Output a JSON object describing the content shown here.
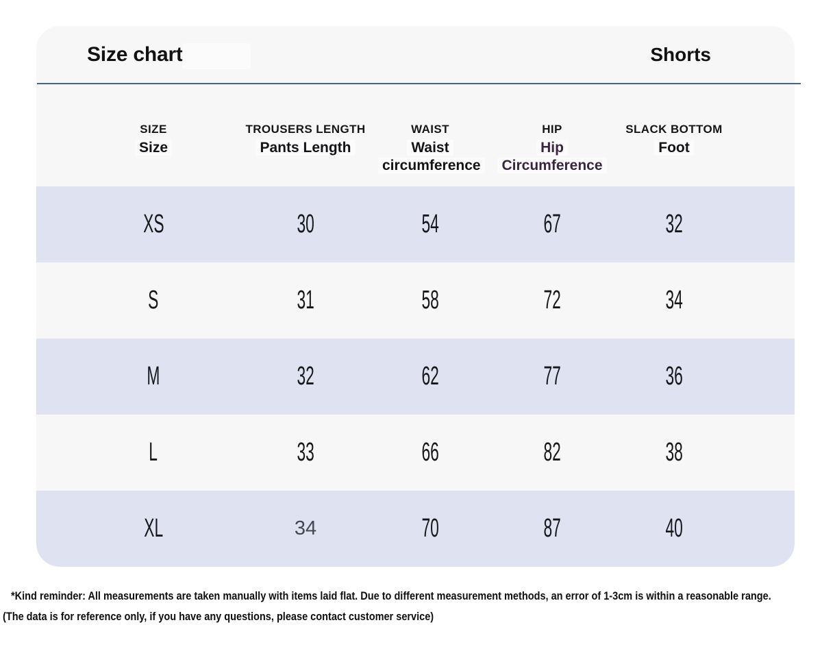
{
  "card": {
    "title": "Size chart",
    "category": "Shorts"
  },
  "columns": [
    {
      "en": "SIZE",
      "lines": [
        "Size"
      ]
    },
    {
      "en": "TROUSERS LENGTH",
      "lines": [
        "Pants Length"
      ]
    },
    {
      "en": "WAIST",
      "lines": [
        "Waist",
        "circumference"
      ]
    },
    {
      "en": "HIP",
      "lines": [
        "Hip",
        "Circumference"
      ],
      "accent": true
    },
    {
      "en": "SLACK BOTTOM",
      "lines": [
        "Foot"
      ]
    }
  ],
  "rows": [
    {
      "label": "XS",
      "values": [
        {
          "v": "30"
        },
        {
          "v": "54"
        },
        {
          "v": "67"
        },
        {
          "v": "32"
        }
      ]
    },
    {
      "label": "S",
      "values": [
        {
          "v": "31"
        },
        {
          "v": "58"
        },
        {
          "v": "72"
        },
        {
          "v": "34"
        }
      ]
    },
    {
      "label": "M",
      "values": [
        {
          "v": "32"
        },
        {
          "v": "62"
        },
        {
          "v": "77"
        },
        {
          "v": "36"
        }
      ]
    },
    {
      "label": "L",
      "values": [
        {
          "v": "33"
        },
        {
          "v": "66"
        },
        {
          "v": "82"
        },
        {
          "v": "38"
        }
      ]
    },
    {
      "label": "XL",
      "values": [
        {
          "v": "34",
          "muted": true
        },
        {
          "v": "70"
        },
        {
          "v": "87"
        },
        {
          "v": "40"
        }
      ]
    }
  ],
  "footnote": {
    "line1": "*Kind reminder: All measurements are taken manually with items laid flat. Due to different measurement methods, an error of 1-3cm is within a reasonable range.",
    "line2": "(The data is for reference only, if you have any questions, please contact customer service)"
  },
  "colors": {
    "row_shade": "#dee2f1",
    "card_bg": "#f7f7f8",
    "divider": "#44638f",
    "accent_text": "#3a2540",
    "muted_value": "#45484f"
  }
}
